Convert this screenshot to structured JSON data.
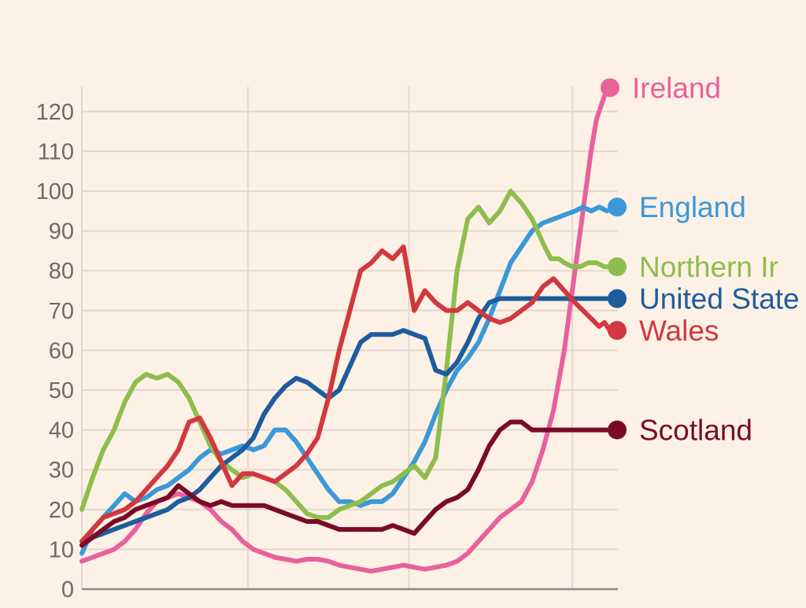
{
  "chart_data": {
    "type": "line",
    "title": "",
    "xlabel": "",
    "ylabel": "",
    "ylim": [
      0,
      125
    ],
    "xlim": [
      0,
      1
    ],
    "yticks": [
      0,
      10,
      20,
      30,
      40,
      50,
      60,
      70,
      80,
      90,
      100,
      110,
      120
    ],
    "grid": true,
    "legend": "direct labels at line ends, right",
    "colors": {
      "background": "#FDF1E5",
      "grid": "#E2D8CF",
      "axis": "#8F8983",
      "tick_text": "#6E6A66"
    },
    "series": [
      {
        "name": "Ireland",
        "color": "#E8619A",
        "x": [
          0,
          0.02,
          0.04,
          0.06,
          0.08,
          0.1,
          0.12,
          0.14,
          0.16,
          0.18,
          0.2,
          0.22,
          0.24,
          0.26,
          0.28,
          0.3,
          0.32,
          0.34,
          0.36,
          0.38,
          0.4,
          0.42,
          0.44,
          0.46,
          0.48,
          0.5,
          0.52,
          0.54,
          0.56,
          0.58,
          0.6,
          0.62,
          0.64,
          0.66,
          0.68,
          0.7,
          0.72,
          0.74,
          0.76,
          0.78,
          0.8,
          0.82,
          0.84,
          0.86,
          0.88,
          0.9,
          0.92,
          0.935,
          0.95,
          0.96,
          0.975,
          0.985
        ],
        "values": [
          7,
          8,
          9,
          10,
          12,
          15,
          19,
          22,
          23,
          24,
          23,
          22,
          20,
          17,
          15,
          12,
          10,
          9,
          8,
          7.5,
          7,
          7.5,
          7.5,
          7,
          6,
          5.5,
          5,
          4.5,
          5,
          5.5,
          6,
          5.5,
          5,
          5.5,
          6,
          7,
          9,
          12,
          15,
          18,
          20,
          22,
          27,
          35,
          45,
          60,
          80,
          95,
          110,
          118,
          124,
          126
        ]
      },
      {
        "name": "England",
        "color": "#3A99D8",
        "x": [
          0,
          0.02,
          0.04,
          0.06,
          0.08,
          0.1,
          0.12,
          0.14,
          0.16,
          0.18,
          0.2,
          0.22,
          0.24,
          0.26,
          0.28,
          0.3,
          0.32,
          0.34,
          0.36,
          0.38,
          0.4,
          0.42,
          0.44,
          0.46,
          0.48,
          0.5,
          0.52,
          0.54,
          0.56,
          0.58,
          0.6,
          0.62,
          0.64,
          0.66,
          0.68,
          0.7,
          0.72,
          0.74,
          0.76,
          0.78,
          0.8,
          0.82,
          0.84,
          0.86,
          0.88,
          0.9,
          0.92,
          0.935,
          0.95,
          0.965,
          0.98
        ],
        "values": [
          9,
          15,
          18,
          21,
          24,
          22,
          23,
          25,
          26,
          28,
          30,
          33,
          35,
          34,
          35,
          36,
          35,
          36,
          40,
          40,
          37,
          33,
          29,
          25,
          22,
          22,
          21,
          22,
          22,
          24,
          28,
          32,
          37,
          44,
          50,
          55,
          58,
          62,
          68,
          75,
          82,
          86,
          90,
          92,
          93,
          94,
          95,
          96,
          95,
          96,
          95
        ]
      },
      {
        "name": "Northern Ireland",
        "color": "#8DBE4D",
        "x": [
          0,
          0.02,
          0.04,
          0.06,
          0.08,
          0.1,
          0.12,
          0.14,
          0.16,
          0.18,
          0.2,
          0.22,
          0.24,
          0.26,
          0.28,
          0.3,
          0.32,
          0.34,
          0.36,
          0.38,
          0.4,
          0.42,
          0.44,
          0.46,
          0.48,
          0.5,
          0.52,
          0.54,
          0.56,
          0.58,
          0.6,
          0.62,
          0.64,
          0.66,
          0.68,
          0.7,
          0.72,
          0.74,
          0.76,
          0.78,
          0.8,
          0.82,
          0.84,
          0.86,
          0.875,
          0.89,
          0.9,
          0.915,
          0.93,
          0.945,
          0.96,
          0.975,
          0.985
        ],
        "values": [
          20,
          28,
          35,
          40,
          47,
          52,
          54,
          53,
          54,
          52,
          48,
          42,
          36,
          32,
          30,
          28,
          29,
          28,
          27,
          25,
          22,
          19,
          18,
          18,
          20,
          21,
          22,
          24,
          26,
          27,
          29,
          31,
          28,
          33,
          55,
          80,
          93,
          96,
          92,
          95,
          100,
          97,
          93,
          87,
          83,
          83,
          82,
          81,
          81,
          82,
          82,
          81,
          81
        ]
      },
      {
        "name": "United States",
        "color": "#1E5C9E",
        "x": [
          0,
          0.02,
          0.04,
          0.06,
          0.08,
          0.1,
          0.12,
          0.14,
          0.16,
          0.18,
          0.2,
          0.22,
          0.24,
          0.26,
          0.28,
          0.3,
          0.32,
          0.34,
          0.36,
          0.38,
          0.4,
          0.42,
          0.44,
          0.46,
          0.48,
          0.5,
          0.52,
          0.54,
          0.56,
          0.58,
          0.6,
          0.62,
          0.64,
          0.66,
          0.68,
          0.7,
          0.72,
          0.74,
          0.76,
          0.78,
          0.8,
          0.82,
          0.84,
          0.86,
          0.88,
          0.9,
          0.92,
          0.94,
          0.96,
          0.975,
          0.985
        ],
        "values": [
          11,
          13,
          14,
          15,
          16,
          17,
          18,
          19,
          20,
          22,
          23,
          25,
          28,
          31,
          33,
          35,
          38,
          44,
          48,
          51,
          53,
          52,
          50,
          48,
          50,
          56,
          62,
          64,
          64,
          64,
          65,
          64,
          63,
          55,
          54,
          57,
          62,
          68,
          72,
          73,
          73,
          73,
          73,
          73,
          73,
          73,
          73,
          73,
          73,
          73,
          73
        ]
      },
      {
        "name": "Wales",
        "color": "#D1383F",
        "x": [
          0,
          0.02,
          0.04,
          0.06,
          0.08,
          0.1,
          0.12,
          0.14,
          0.16,
          0.18,
          0.2,
          0.22,
          0.24,
          0.26,
          0.28,
          0.3,
          0.32,
          0.34,
          0.36,
          0.38,
          0.4,
          0.42,
          0.44,
          0.46,
          0.48,
          0.5,
          0.52,
          0.54,
          0.56,
          0.58,
          0.6,
          0.62,
          0.64,
          0.66,
          0.68,
          0.7,
          0.72,
          0.74,
          0.76,
          0.78,
          0.8,
          0.82,
          0.84,
          0.86,
          0.88,
          0.9,
          0.92,
          0.935,
          0.95,
          0.965,
          0.975,
          0.985
        ],
        "values": [
          12,
          15,
          18,
          19,
          20,
          22,
          25,
          28,
          31,
          35,
          42,
          43,
          38,
          32,
          26,
          29,
          29,
          28,
          27,
          29,
          31,
          34,
          38,
          48,
          60,
          70,
          80,
          82,
          85,
          83,
          86,
          70,
          75,
          72,
          70,
          70,
          72,
          70,
          68,
          67,
          68,
          70,
          72,
          76,
          78,
          75,
          72,
          70,
          68,
          66,
          67,
          65
        ]
      },
      {
        "name": "Scotland",
        "color": "#7A0B27",
        "x": [
          0,
          0.02,
          0.04,
          0.06,
          0.08,
          0.1,
          0.12,
          0.14,
          0.16,
          0.18,
          0.2,
          0.22,
          0.24,
          0.26,
          0.28,
          0.3,
          0.32,
          0.34,
          0.36,
          0.38,
          0.4,
          0.42,
          0.44,
          0.46,
          0.48,
          0.5,
          0.52,
          0.54,
          0.56,
          0.58,
          0.6,
          0.62,
          0.64,
          0.66,
          0.68,
          0.7,
          0.72,
          0.74,
          0.76,
          0.78,
          0.8,
          0.82,
          0.84,
          0.86,
          0.88,
          0.9,
          0.92,
          0.935,
          0.95,
          0.965,
          0.975,
          0.985
        ],
        "values": [
          11,
          13,
          15,
          17,
          18,
          20,
          21,
          22,
          23,
          26,
          24,
          22,
          21,
          22,
          21,
          21,
          21,
          21,
          20,
          19,
          18,
          17,
          17,
          16,
          15,
          15,
          15,
          15,
          15,
          16,
          15,
          14,
          17,
          20,
          22,
          23,
          25,
          30,
          36,
          40,
          42,
          42,
          40,
          40,
          40,
          40,
          40,
          40,
          40,
          40,
          40,
          40
        ]
      }
    ],
    "labels": [
      {
        "series": "Ireland",
        "text": "Ireland",
        "value": 126
      },
      {
        "series": "England",
        "text": "England",
        "value": 96
      },
      {
        "series": "Northern Ireland",
        "text": "Northern Ir",
        "value": 81
      },
      {
        "series": "United States",
        "text": "United State",
        "value": 73
      },
      {
        "series": "Wales",
        "text": "Wales",
        "value": 65
      },
      {
        "series": "Scotland",
        "text": "Scotland",
        "value": 40
      }
    ]
  }
}
